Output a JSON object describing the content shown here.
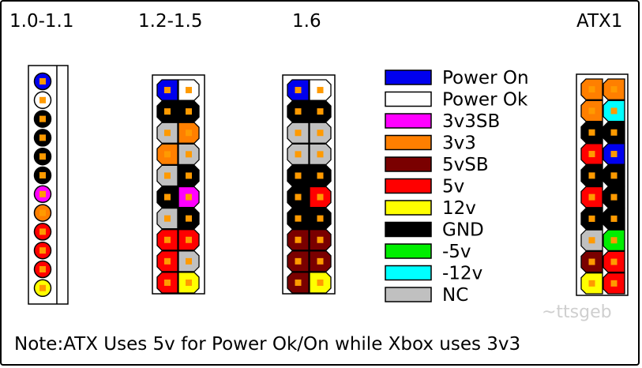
{
  "headers": {
    "v10_11": "1.0-1.1",
    "v12_15": "1.2-1.5",
    "v16": "1.6",
    "atx1": "ATX1"
  },
  "note": "Note:ATX Uses 5v for Power Ok/On while Xbox uses 3v3",
  "watermark": "~ttsgeb",
  "colors": {
    "power_on": "#0000ee",
    "power_ok": "#ffffff",
    "3v3sb": "#ff00ff",
    "3v3": "#ff7f00",
    "5vsb": "#7a0000",
    "5v": "#ff0000",
    "12v": "#ffff00",
    "gnd": "#000000",
    "-5v": "#00ee00",
    "-12v": "#00ffff",
    "nc": "#c0c0c0"
  },
  "legend": [
    {
      "key": "power_on",
      "label": "Power On"
    },
    {
      "key": "power_ok",
      "label": "Power Ok"
    },
    {
      "key": "3v3sb",
      "label": "3v3SB"
    },
    {
      "key": "3v3",
      "label": "3v3"
    },
    {
      "key": "5vsb",
      "label": "5vSB"
    },
    {
      "key": "5v",
      "label": "5v"
    },
    {
      "key": "12v",
      "label": "12v"
    },
    {
      "key": "gnd",
      "label": "GND"
    },
    {
      "key": "-5v",
      "label": "-5v"
    },
    {
      "key": "-12v",
      "label": "-12v"
    },
    {
      "key": "nc",
      "label": "NC"
    }
  ],
  "connectors": {
    "v10_11": [
      "power_on",
      "power_ok",
      "gnd",
      "gnd",
      "gnd",
      "gnd",
      "3v3sb",
      "3v3",
      "5v",
      "5v",
      "5v",
      "12v"
    ],
    "v12_15": [
      [
        "power_on",
        "power_ok"
      ],
      [
        "gnd",
        "gnd"
      ],
      [
        "nc",
        "3v3"
      ],
      [
        "3v3",
        "nc"
      ],
      [
        "nc",
        "gnd"
      ],
      [
        "gnd",
        "3v3sb"
      ],
      [
        "nc",
        "gnd"
      ],
      [
        "5v",
        "5v"
      ],
      [
        "5v",
        "nc"
      ],
      [
        "5v",
        "12v"
      ]
    ],
    "v16": [
      [
        "power_on",
        "power_ok"
      ],
      [
        "gnd",
        "gnd"
      ],
      [
        "nc",
        "nc"
      ],
      [
        "nc",
        "nc"
      ],
      [
        "gnd",
        "gnd"
      ],
      [
        "gnd",
        "5v"
      ],
      [
        "gnd",
        "gnd"
      ],
      [
        "5vsb",
        "5vsb"
      ],
      [
        "5vsb",
        "5vsb"
      ],
      [
        "5vsb",
        "12v"
      ]
    ],
    "atx1": [
      [
        "3v3",
        "3v3"
      ],
      [
        "3v3",
        "-12v"
      ],
      [
        "gnd",
        "gnd"
      ],
      [
        "5v",
        "power_on"
      ],
      [
        "gnd",
        "gnd"
      ],
      [
        "5v",
        "gnd"
      ],
      [
        "gnd",
        "gnd"
      ],
      [
        "nc",
        "-5v"
      ],
      [
        "5vsb",
        "5v"
      ],
      [
        "12v",
        "5v"
      ]
    ]
  }
}
